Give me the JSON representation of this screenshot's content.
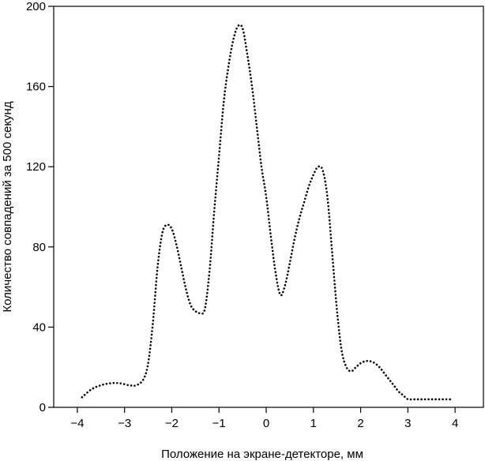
{
  "chart_data": {
    "type": "line",
    "title": "",
    "xlabel": "Положение на экране-детекторе, мм",
    "ylabel": "Количество совпадений за 500 секунд",
    "xlim": [
      -4.5,
      4.6
    ],
    "ylim": [
      0,
      200
    ],
    "x_ticks": [
      -4,
      -3,
      -2,
      -1,
      0,
      1,
      2,
      3,
      4
    ],
    "x_tick_labels": [
      "−4",
      "−3",
      "−2",
      "−1",
      "0",
      "1",
      "2",
      "3",
      "4"
    ],
    "y_ticks": [
      0,
      40,
      80,
      120,
      160,
      200
    ],
    "y_tick_labels": [
      "0",
      "40",
      "80",
      "120",
      "160",
      "200"
    ],
    "grid": false,
    "line_style": "dotted",
    "series": [
      {
        "x": [
          -3.9,
          -3.7,
          -3.5,
          -3.3,
          -3.1,
          -2.9,
          -2.75,
          -2.6,
          -2.5,
          -2.4,
          -2.3,
          -2.2,
          -2.1,
          -2.0,
          -1.9,
          -1.8,
          -1.7,
          -1.6,
          -1.5,
          -1.4,
          -1.3,
          -1.2,
          -1.1,
          -1.0,
          -0.9,
          -0.8,
          -0.7,
          -0.6,
          -0.5,
          -0.4,
          -0.3,
          -0.2,
          -0.1,
          0.0,
          0.1,
          0.2,
          0.3,
          0.4,
          0.5,
          0.6,
          0.7,
          0.8,
          0.9,
          1.0,
          1.1,
          1.2,
          1.3,
          1.4,
          1.5,
          1.6,
          1.7,
          1.8,
          1.9,
          2.0,
          2.1,
          2.2,
          2.3,
          2.4,
          2.5,
          2.6,
          2.7,
          2.8,
          2.9,
          3.0,
          3.1,
          3.2,
          3.3,
          3.4,
          3.5,
          3.6,
          3.7,
          3.8,
          3.9
        ],
        "y": [
          5,
          9,
          11,
          12,
          12,
          11,
          11,
          14,
          22,
          42,
          70,
          87,
          91,
          89,
          81,
          70,
          59,
          51,
          48,
          47,
          49,
          68,
          98,
          125,
          152,
          170,
          183,
          190,
          189,
          176,
          160,
          140,
          120,
          105,
          85,
          67,
          56,
          61,
          72,
          84,
          94,
          102,
          110,
          116,
          120,
          118,
          104,
          76,
          48,
          28,
          20,
          18,
          20,
          22,
          23,
          23,
          22,
          20,
          17,
          14,
          11,
          8,
          6,
          4,
          4,
          4,
          4,
          4,
          4,
          4,
          4,
          4,
          4
        ]
      }
    ]
  }
}
